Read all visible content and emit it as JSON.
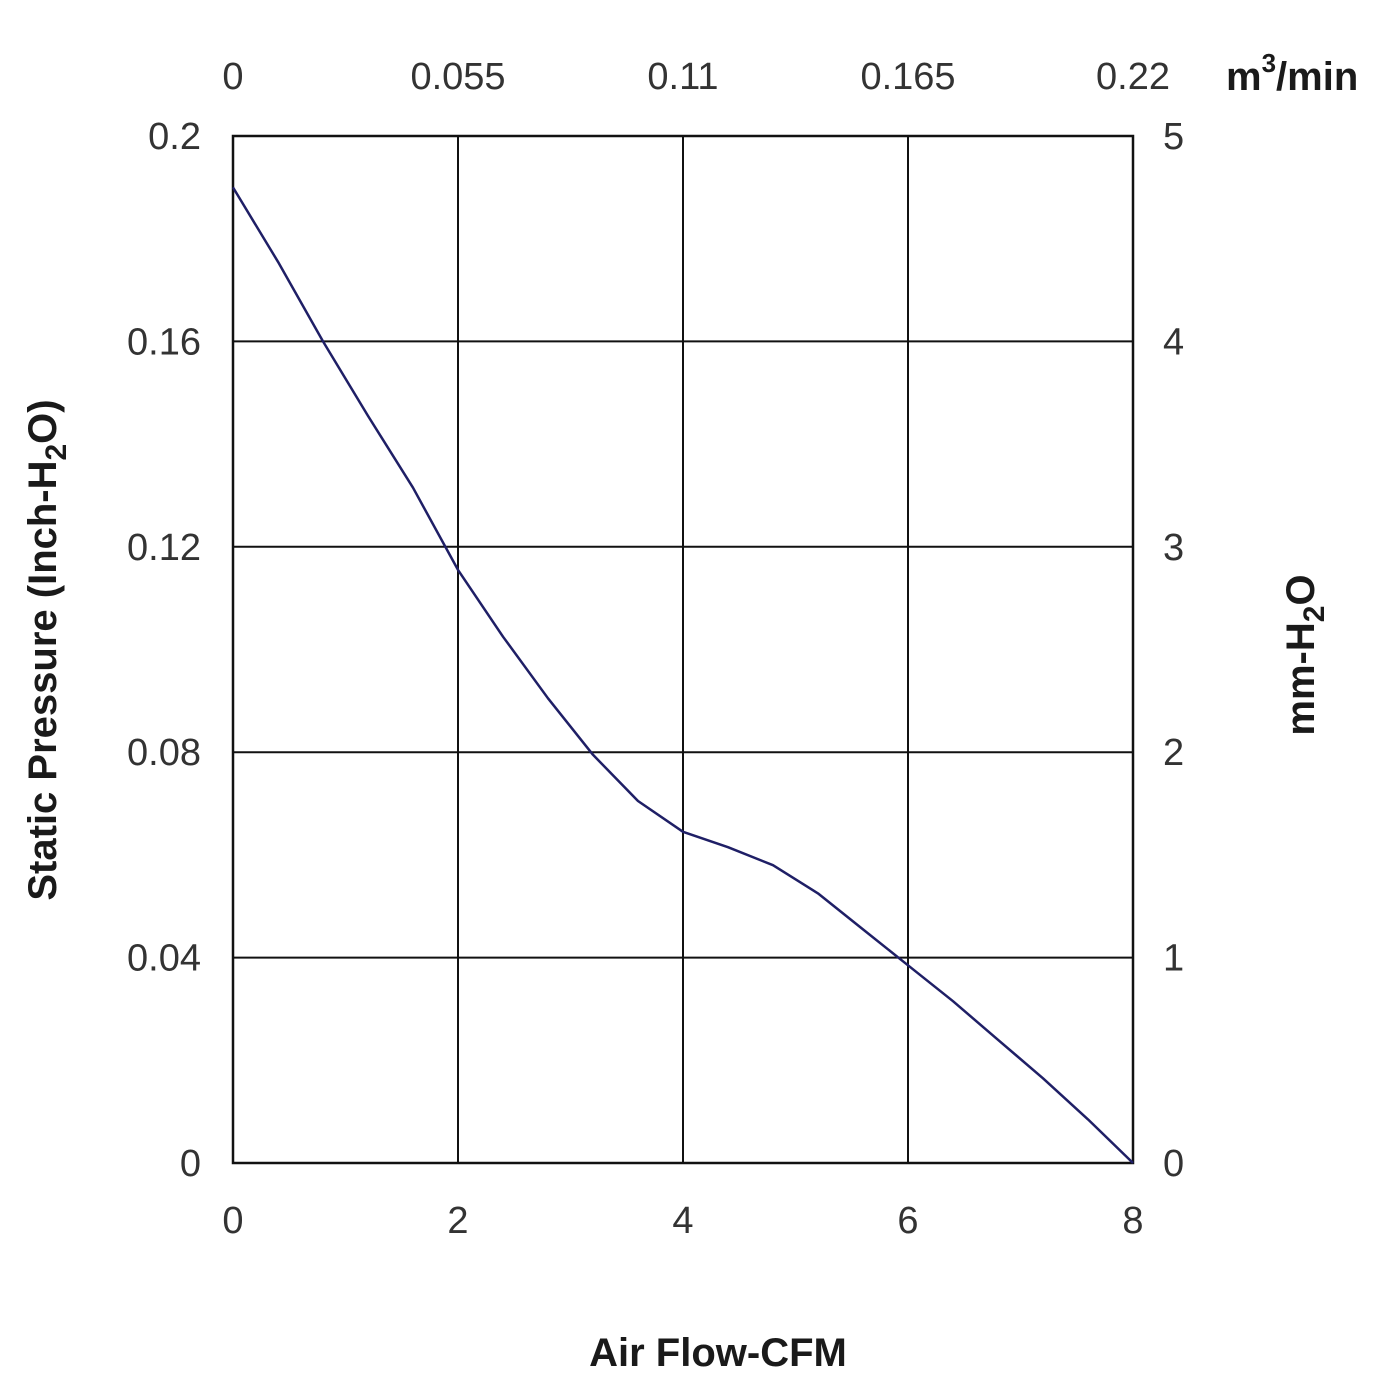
{
  "chart_data": {
    "type": "line",
    "x_bottom": {
      "label": "Air Flow-CFM",
      "range": [
        0,
        8
      ],
      "ticks": [
        "0",
        "2",
        "4",
        "6",
        "8"
      ]
    },
    "x_top": {
      "unit_main": "m",
      "unit_sup": "3",
      "unit_tail": "/min",
      "range": [
        0,
        0.22
      ],
      "ticks": [
        "0",
        "0.055",
        "0.11",
        "0.165",
        "0.22"
      ]
    },
    "y_left": {
      "label_main": "Static Pressure (Inch-H",
      "label_sub": "2",
      "label_tail": "O)",
      "range": [
        0,
        0.2
      ],
      "ticks": [
        "0",
        "0.04",
        "0.08",
        "0.12",
        "0.16",
        "0.2"
      ]
    },
    "y_right": {
      "label_main": "mm-H",
      "label_sub": "2",
      "label_tail": "O",
      "range": [
        0,
        5
      ],
      "ticks": [
        "0",
        "1",
        "2",
        "3",
        "4",
        "5"
      ]
    },
    "grid": true,
    "series": [
      {
        "color": "#1f1f66",
        "x": [
          0,
          0.4,
          0.8,
          1.2,
          1.6,
          2.0,
          2.4,
          2.8,
          3.2,
          3.6,
          4.0,
          4.4,
          4.8,
          5.2,
          5.6,
          6.0,
          6.4,
          6.8,
          7.2,
          7.6,
          8.0
        ],
        "y": [
          0.19,
          0.1755,
          0.16,
          0.1455,
          0.1315,
          0.1155,
          0.1025,
          0.0905,
          0.0795,
          0.0705,
          0.0645,
          0.0615,
          0.058,
          0.0525,
          0.0455,
          0.0385,
          0.0315,
          0.024,
          0.0165,
          0.0085,
          0
        ]
      }
    ]
  }
}
